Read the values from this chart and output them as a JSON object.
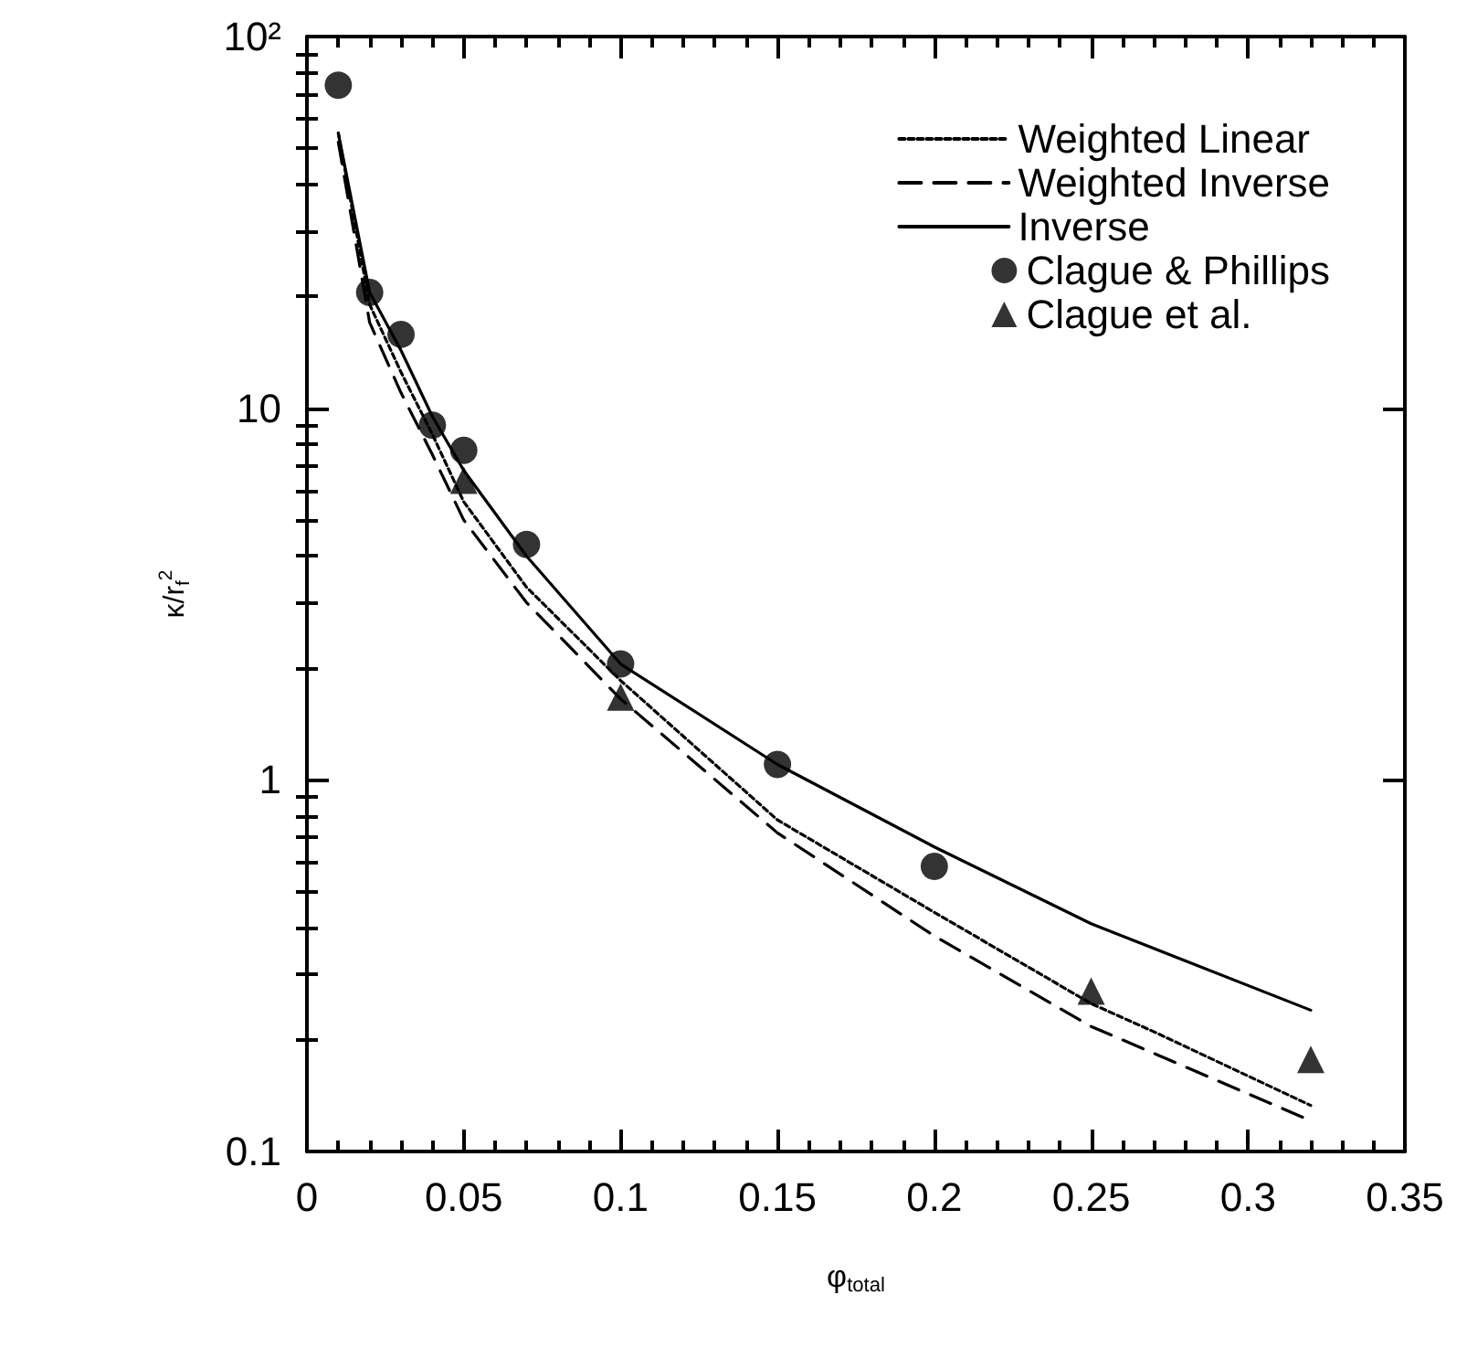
{
  "chart_data": {
    "type": "line",
    "xlabel": "φ$_{total}$",
    "ylabel": "κ/r$_{f}$$^{2}$",
    "log": "y",
    "xlim": [
      0,
      0.35
    ],
    "xticks": [
      0,
      0.05,
      0.1,
      0.15,
      0.2,
      0.25,
      0.3,
      0.35
    ],
    "ylim": [
      0.1,
      100
    ],
    "yticks": [
      0.1,
      1,
      10,
      {
        "value": 100,
        "label": "10²"
      }
    ],
    "grid": false,
    "legend": "top right",
    "series": [
      {
        "name": "Weighted Linear",
        "line_style": "dotted",
        "marker": "none",
        "color": "#000000",
        "x": [
          0.01,
          0.02,
          0.03,
          0.04,
          0.05,
          0.07,
          0.1,
          0.15,
          0.2,
          0.25,
          0.27,
          0.32
        ],
        "values": [
          55,
          19,
          12.5,
          8.5,
          5.6,
          3.3,
          1.85,
          0.78,
          0.44,
          0.25,
          0.21,
          0.133
        ]
      },
      {
        "name": "Weighted Inverse",
        "line_style": "dashed",
        "marker": "none",
        "color": "#000000",
        "x": [
          0.01,
          0.02,
          0.03,
          0.04,
          0.05,
          0.07,
          0.1,
          0.15,
          0.2,
          0.25,
          0.32
        ],
        "values": [
          52,
          17,
          11,
          7.5,
          5.0,
          3.0,
          1.65,
          0.72,
          0.38,
          0.217,
          0.121
        ]
      },
      {
        "name": "Inverse",
        "line_style": "solid",
        "marker": "none",
        "color": "#000000",
        "x": [
          0.01,
          0.02,
          0.03,
          0.04,
          0.05,
          0.07,
          0.1,
          0.15,
          0.2,
          0.25,
          0.32
        ],
        "values": [
          55,
          20.5,
          14.3,
          9.5,
          6.8,
          4.0,
          2.05,
          1.1,
          0.66,
          0.41,
          0.24
        ]
      },
      {
        "name": "Clague & Phillips",
        "type": "scatter",
        "marker": "circle",
        "color": "#000000",
        "x": [
          0.01,
          0.02,
          0.03,
          0.04,
          0.05,
          0.07,
          0.1,
          0.15,
          0.2
        ],
        "values": [
          74,
          20.5,
          15.8,
          9.0,
          7.7,
          4.3,
          2.05,
          1.1,
          0.585
        ]
      },
      {
        "name": "Clague et al.",
        "type": "scatter",
        "marker": "triangle",
        "color": "#000000",
        "x": [
          0.05,
          0.1,
          0.25,
          0.32
        ],
        "values": [
          6.4,
          1.67,
          0.27,
          0.177
        ]
      }
    ]
  }
}
